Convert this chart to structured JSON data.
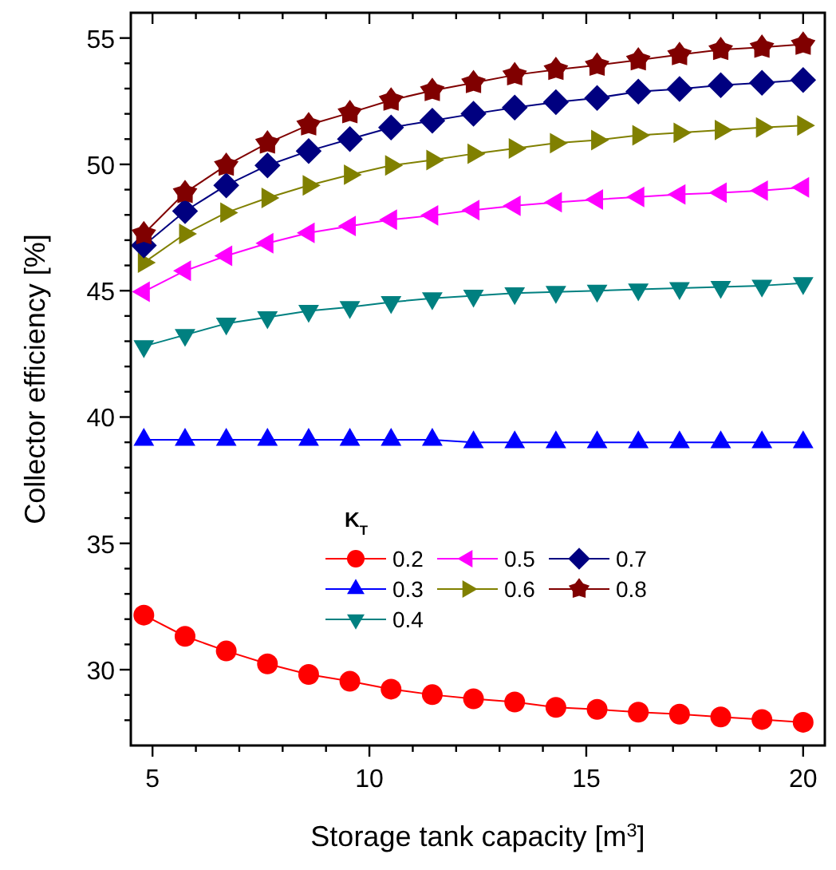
{
  "chart_data": {
    "type": "line",
    "xlabel": "Storage tank capacity [m$^{3}$]",
    "ylabel": "Collector efficiency [%]",
    "legend_title": "K$_{T}$",
    "legend": "right",
    "xlim": [
      4.5,
      20.5
    ],
    "xticks": [
      5,
      {
        "value": 6,
        "label": null
      },
      {
        "value": 7,
        "label": null
      },
      {
        "value": 8,
        "label": null
      },
      {
        "value": 9,
        "label": null
      },
      10,
      {
        "value": 11,
        "label": null
      },
      {
        "value": 12,
        "label": null
      },
      {
        "value": 13,
        "label": null
      },
      {
        "value": 14,
        "label": null
      },
      15,
      {
        "value": 16,
        "label": null
      },
      {
        "value": 17,
        "label": null
      },
      {
        "value": 18,
        "label": null
      },
      {
        "value": 19,
        "label": null
      },
      20
    ],
    "ylim": [
      27,
      56
    ],
    "yticks": [
      {
        "value": 28,
        "label": null
      },
      {
        "value": 29,
        "label": null
      },
      30,
      {
        "value": 31,
        "label": null
      },
      {
        "value": 32,
        "label": null
      },
      {
        "value": 33,
        "label": null
      },
      {
        "value": 34,
        "label": null
      },
      35,
      {
        "value": 36,
        "label": null
      },
      {
        "value": 37,
        "label": null
      },
      {
        "value": 38,
        "label": null
      },
      {
        "value": 39,
        "label": null
      },
      40,
      {
        "value": 41,
        "label": null
      },
      {
        "value": 42,
        "label": null
      },
      {
        "value": 43,
        "label": null
      },
      {
        "value": 44,
        "label": null
      },
      45,
      {
        "value": 46,
        "label": null
      },
      {
        "value": 47,
        "label": null
      },
      {
        "value": 48,
        "label": null
      },
      {
        "value": 49,
        "label": null
      },
      50,
      {
        "value": 51,
        "label": null
      },
      {
        "value": 52,
        "label": null
      },
      {
        "value": 53,
        "label": null
      },
      {
        "value": 54,
        "label": null
      },
      55
    ],
    "grid": false,
    "line_style": "solid",
    "x": [
      4.8,
      5.75,
      6.7,
      7.65,
      8.6,
      9.55,
      10.5,
      11.45,
      12.4,
      13.35,
      14.3,
      15.25,
      16.2,
      17.15,
      18.1,
      19.05,
      20
    ],
    "series": [
      {
        "name": "0.2",
        "color": "#ff0000",
        "marker": "circle",
        "values": [
          32.16,
          31.32,
          30.74,
          30.23,
          29.81,
          29.54,
          29.23,
          29.01,
          28.85,
          28.72,
          28.51,
          28.43,
          28.32,
          28.24,
          28.13,
          28.03,
          27.92
        ]
      },
      {
        "name": "0.3",
        "color": "#0000ff",
        "marker": "triangle",
        "values": [
          39.1,
          39.1,
          39.1,
          39.1,
          39.1,
          39.1,
          39.1,
          39.1,
          39.0,
          39.0,
          39.0,
          39.0,
          39.0,
          39.0,
          39.0,
          39.0,
          39.0
        ]
      },
      {
        "name": "0.4",
        "color": "#008080",
        "marker": "triangle-down",
        "values": [
          42.8,
          43.25,
          43.7,
          43.95,
          44.2,
          44.35,
          44.55,
          44.7,
          44.8,
          44.9,
          44.95,
          45.0,
          45.05,
          45.1,
          45.15,
          45.2,
          45.3
        ]
      },
      {
        "name": "0.5",
        "color": "#ff00ff",
        "marker": "triangle-left",
        "values": [
          44.96,
          45.79,
          46.38,
          46.88,
          47.29,
          47.56,
          47.81,
          47.98,
          48.19,
          48.36,
          48.5,
          48.61,
          48.71,
          48.81,
          48.88,
          48.96,
          49.09
        ]
      },
      {
        "name": "0.6",
        "color": "#808000",
        "marker": "triangle-right",
        "values": [
          46.11,
          47.25,
          48.09,
          48.67,
          49.17,
          49.59,
          49.96,
          50.17,
          50.42,
          50.63,
          50.84,
          50.96,
          51.15,
          51.25,
          51.36,
          51.46,
          51.54
        ]
      },
      {
        "name": "0.7",
        "color": "#000080",
        "marker": "diamond",
        "values": [
          46.79,
          48.15,
          49.17,
          49.96,
          50.53,
          51.0,
          51.46,
          51.73,
          52.0,
          52.25,
          52.46,
          52.63,
          52.88,
          52.98,
          53.13,
          53.23,
          53.34
        ]
      },
      {
        "name": "0.8",
        "color": "#800000",
        "marker": "star",
        "values": [
          47.25,
          48.88,
          49.96,
          50.84,
          51.56,
          52.04,
          52.54,
          52.92,
          53.23,
          53.54,
          53.75,
          53.92,
          54.13,
          54.34,
          54.54,
          54.63,
          54.75
        ]
      }
    ]
  }
}
